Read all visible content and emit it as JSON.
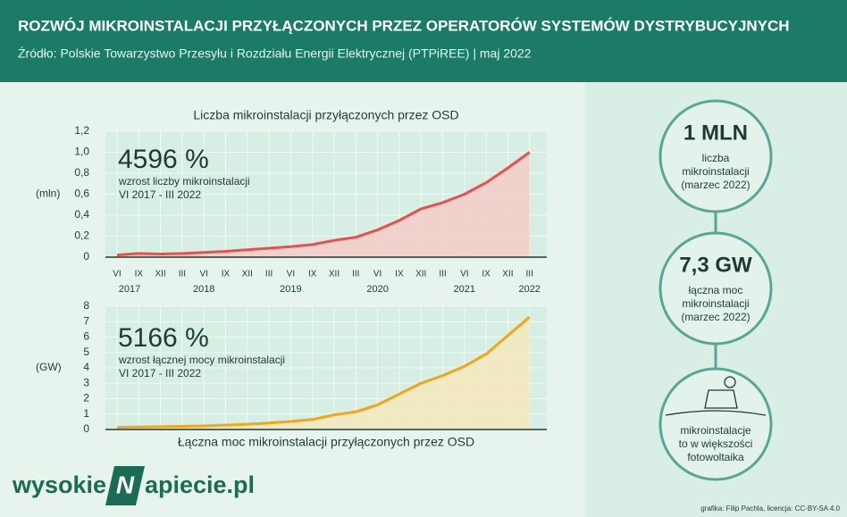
{
  "header": {
    "title": "ROZWÓJ MIKROINSTALACJI PRZYŁĄCZONYCH PRZEZ OPERATORÓW SYSTEMÓW DYSTRYBUCYJNYCH",
    "subtitle": "Źródło: Polskie Towarzystwo Przesyłu i Rozdziału Energii Elektrycznej (PTPiREE) | maj 2022"
  },
  "chart_data": [
    {
      "type": "line",
      "title": "Liczba mikroinstalacji przyłączonych przez OSD",
      "y_label": "(mln)",
      "annotation": {
        "headline": "4596 %",
        "lines": [
          "wzrost liczby mikroinstalacji",
          "VI 2017 - III 2022"
        ]
      },
      "categories": [
        "VI",
        "IX",
        "XII",
        "III",
        "VI",
        "IX",
        "XII",
        "III",
        "VI",
        "IX",
        "XII",
        "III",
        "VI",
        "IX",
        "XII",
        "III",
        "VI",
        "IX",
        "XII",
        "III"
      ],
      "years": [
        "2017",
        null,
        null,
        null,
        "2018",
        null,
        null,
        null,
        "2019",
        null,
        null,
        null,
        "2020",
        null,
        null,
        null,
        "2021",
        null,
        null,
        "2022"
      ],
      "values": [
        0.02,
        0.035,
        0.03,
        0.035,
        0.045,
        0.055,
        0.07,
        0.085,
        0.1,
        0.12,
        0.16,
        0.19,
        0.26,
        0.35,
        0.46,
        0.52,
        0.6,
        0.71,
        0.85,
        1.0
      ],
      "color": "#e8504f",
      "fill": "#f6c9c4",
      "ylim": [
        0,
        1.2
      ],
      "yticks": [
        0,
        {
          "value": 0.2,
          "label": "0,2"
        },
        {
          "value": 0.4,
          "label": "0,4"
        },
        {
          "value": 0.6,
          "label": "0,6"
        },
        {
          "value": 0.8,
          "label": "0,8"
        },
        {
          "value": 1.0,
          "label": "1,0"
        },
        {
          "value": 1.2,
          "label": "1,2"
        }
      ],
      "grid": true
    },
    {
      "type": "line",
      "title": "Łączna moc mikroinstalacji przyłączonych przez OSD",
      "y_label": "(GW)",
      "annotation": {
        "headline": "5166 %",
        "lines": [
          "wzrost łącznej mocy mikroinstalacji",
          "VI 2017 - III 2022"
        ]
      },
      "values": [
        0.14,
        0.16,
        0.18,
        0.2,
        0.23,
        0.28,
        0.34,
        0.42,
        0.52,
        0.65,
        0.95,
        1.15,
        1.6,
        2.3,
        3.0,
        3.5,
        4.1,
        4.9,
        6.1,
        7.3
      ],
      "color": "#f2a51c",
      "fill": "#f7e7b8",
      "ylim": [
        0,
        8
      ],
      "yticks": [
        0,
        1,
        2,
        3,
        4,
        5,
        6,
        7,
        8
      ],
      "grid": true
    }
  ],
  "side": [
    {
      "headline": "1 MLN",
      "lines": [
        "liczba",
        "mikroinstalacji",
        "(marzec 2022)"
      ]
    },
    {
      "headline": "7,3 GW",
      "lines": [
        "łączna moc",
        "mikroinstalacji",
        "(marzec 2022)"
      ]
    },
    {
      "lines": [
        "mikroinstalacje",
        "to w większości",
        "fotowoltaika"
      ]
    }
  ],
  "logo": {
    "left": "wysokie",
    "mark": "N",
    "right": "apiecie.pl"
  },
  "credit": "grafika: Filip Pachla, licencja: CC-BY-SA 4.0"
}
